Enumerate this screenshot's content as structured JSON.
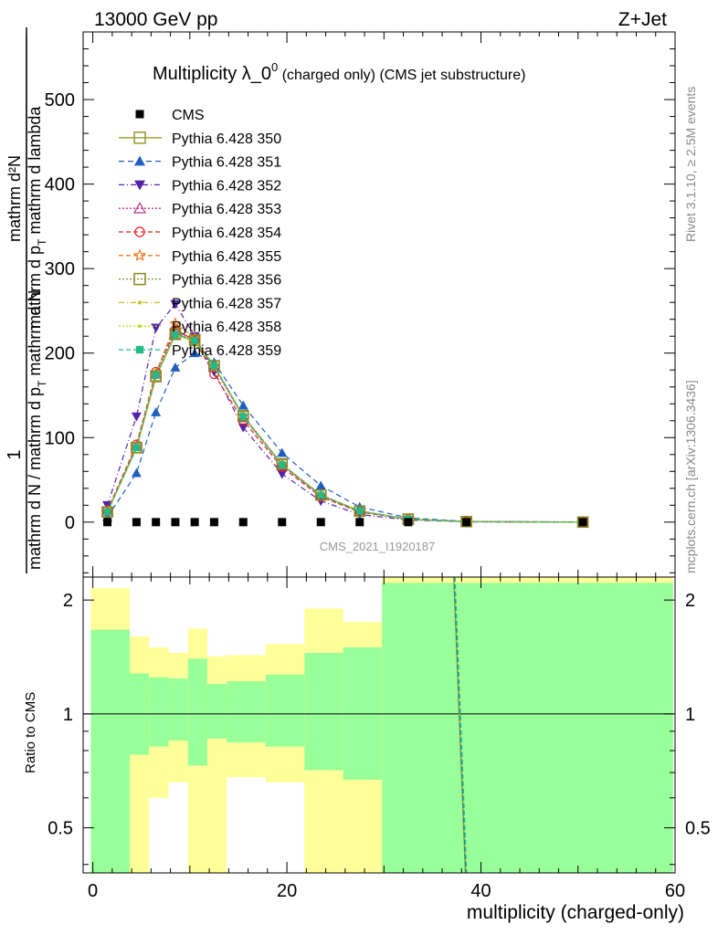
{
  "header": {
    "energy": "13000 GeV pp",
    "process": "Z+Jet"
  },
  "title": {
    "main": "Multiplicity λ_0",
    "sup": "0",
    "tail": " (charged only) (CMS jet substructure)"
  },
  "side": {
    "rivet": "Rivet 3.1.10, ≥ 2.5M events",
    "site": "mcplots.cern.ch [arXiv:1306.3436]"
  },
  "watermark": "CMS_2021_I1920187",
  "ylabel_top": {
    "numerator": "1",
    "denominator_text": "mathrm d N / mathrm d p",
    "denominator_sub": "T",
    "denominator_tail": " mathrm d N",
    "right_numerator": "mathrm d²N",
    "right_den_a": "mathrm d p",
    "right_den_sub": "T",
    "right_den_b": " mathrm d lambda"
  },
  "ylabel_ratio": "Ratio to CMS",
  "xlabel": "multiplicity (charged-only)",
  "colors": {
    "green_band": "#99ff99",
    "yellow_band": "#ffff99",
    "cms": "#000000"
  },
  "chart_data": {
    "type": "scatter",
    "x_ticks": [
      "0",
      "20",
      "40",
      "60"
    ],
    "y_ticks_main": [
      "0",
      "100",
      "200",
      "300",
      "400",
      "500"
    ],
    "y_ticks_ratio": [
      "0.5",
      "1",
      "2"
    ],
    "xlim": [
      -1,
      60
    ],
    "ylim_main": [
      -65,
      580
    ],
    "ylim_ratio": [
      0.38,
      2.3
    ],
    "cms": {
      "name": "CMS",
      "x": [
        1.5,
        4.5,
        6.5,
        8.5,
        10.5,
        12.5,
        15.5,
        19.5,
        23.5,
        27.5,
        32.5,
        38.5,
        50.5
      ],
      "y": [
        0,
        0,
        0,
        0,
        0,
        0,
        0,
        0,
        0,
        0,
        0,
        0,
        0
      ]
    },
    "series": [
      {
        "name": "Pythia 6.428 350",
        "color": "#999933",
        "dash": "",
        "marker": "square-open",
        "x": [
          1.5,
          4.5,
          6.5,
          8.5,
          10.5,
          12.5,
          15.5,
          19.5,
          23.5,
          27.5,
          32.5,
          38.5,
          50.5
        ],
        "y": [
          12,
          88,
          172,
          222,
          215,
          185,
          125,
          68,
          32,
          13,
          3.5,
          0.6,
          0.05
        ]
      },
      {
        "name": "Pythia 6.428 351",
        "color": "#1f5fbf",
        "dash": "6,4",
        "marker": "triangle-up",
        "x": [
          1.5,
          4.5,
          6.5,
          8.5,
          10.5,
          12.5,
          15.5,
          19.5,
          23.5,
          27.5,
          32.5,
          38.5,
          50.5
        ],
        "y": [
          6,
          58,
          130,
          183,
          200,
          189,
          138,
          82,
          43,
          18,
          5,
          0.9,
          0.05
        ]
      },
      {
        "name": "Pythia 6.428 352",
        "color": "#5522aa",
        "dash": "6,3,1,3",
        "marker": "triangle-down",
        "x": [
          1.5,
          4.5,
          6.5,
          8.5,
          10.5,
          12.5,
          15.5,
          19.5,
          23.5,
          27.5,
          32.5,
          38.5,
          50.5
        ],
        "y": [
          20,
          125,
          230,
          258,
          220,
          178,
          112,
          57,
          25,
          9,
          2.5,
          0.4,
          0.03
        ]
      },
      {
        "name": "Pythia 6.428 353",
        "color": "#bb3388",
        "dash": "2,2",
        "marker": "triangle-open",
        "x": [
          1.5,
          4.5,
          6.5,
          8.5,
          10.5,
          12.5,
          15.5,
          19.5,
          23.5,
          27.5,
          32.5,
          38.5,
          50.5
        ],
        "y": [
          13,
          90,
          175,
          225,
          217,
          183,
          124,
          67,
          31,
          12,
          3.4,
          0.6,
          0.05
        ]
      },
      {
        "name": "Pythia 6.428 354",
        "color": "#dd2222",
        "dash": "5,3",
        "marker": "circle-open",
        "x": [
          1.5,
          4.5,
          6.5,
          8.5,
          10.5,
          12.5,
          15.5,
          19.5,
          23.5,
          27.5,
          32.5,
          38.5,
          50.5
        ],
        "y": [
          14,
          92,
          178,
          228,
          215,
          175,
          120,
          65,
          30,
          12,
          3.3,
          0.6,
          0.05
        ]
      },
      {
        "name": "Pythia 6.428 355",
        "color": "#ee7722",
        "dash": "5,3",
        "marker": "star-open",
        "x": [
          1.5,
          4.5,
          6.5,
          8.5,
          10.5,
          12.5,
          15.5,
          19.5,
          23.5,
          27.5,
          32.5,
          38.5,
          50.5
        ],
        "y": [
          13,
          89,
          176,
          235,
          218,
          184,
          125,
          68,
          32,
          13,
          3.5,
          0.6,
          0.05
        ]
      },
      {
        "name": "Pythia 6.428 356",
        "color": "#888822",
        "dash": "2,2",
        "marker": "square-open",
        "x": [
          1.5,
          4.5,
          6.5,
          8.5,
          10.5,
          12.5,
          15.5,
          19.5,
          23.5,
          27.5,
          32.5,
          38.5,
          50.5
        ],
        "y": [
          12,
          88,
          173,
          223,
          216,
          185,
          126,
          69,
          32,
          13,
          3.5,
          0.6,
          0.05
        ]
      },
      {
        "name": "Pythia 6.428 357",
        "color": "#ccbb22",
        "dash": "6,3,1,3",
        "marker": "dot",
        "x": [
          1.5,
          4.5,
          6.5,
          8.5,
          10.5,
          12.5,
          15.5,
          19.5,
          23.5,
          27.5,
          32.5,
          38.5,
          50.5
        ],
        "y": [
          12,
          87,
          172,
          221,
          214,
          184,
          126,
          68,
          32,
          13,
          3.5,
          0.6,
          0.05
        ]
      },
      {
        "name": "Pythia 6.428 358",
        "color": "#bbdd22",
        "dash": "2,2",
        "marker": "dot",
        "x": [
          1.5,
          4.5,
          6.5,
          8.5,
          10.5,
          12.5,
          15.5,
          19.5,
          23.5,
          27.5,
          32.5,
          38.5,
          50.5
        ],
        "y": [
          12,
          88,
          173,
          222,
          215,
          185,
          125,
          68,
          32,
          13,
          3.5,
          0.6,
          0.05
        ]
      },
      {
        "name": "Pythia 6.428 359",
        "color": "#22bb88",
        "dash": "5,3",
        "marker": "square-filled",
        "x": [
          1.5,
          4.5,
          6.5,
          8.5,
          10.5,
          12.5,
          15.5,
          19.5,
          23.5,
          27.5,
          32.5,
          38.5,
          50.5
        ],
        "y": [
          12,
          88,
          174,
          222,
          215,
          185,
          125,
          68,
          32,
          13,
          3.5,
          0.6,
          0.05
        ]
      }
    ],
    "ratio_bands": [
      {
        "x0": -0.2,
        "x1": 3.8,
        "g_lo": 0.38,
        "g_hi": 1.67,
        "y_lo": 0.38,
        "y_hi": 2.15
      },
      {
        "x0": 3.8,
        "x1": 5.8,
        "g_lo": 0.78,
        "g_hi": 1.28,
        "y_lo": 0.38,
        "y_hi": 1.6
      },
      {
        "x0": 5.8,
        "x1": 7.8,
        "g_lo": 0.82,
        "g_hi": 1.25,
        "y_lo": 0.6,
        "y_hi": 1.5
      },
      {
        "x0": 7.8,
        "x1": 9.8,
        "g_lo": 0.85,
        "g_hi": 1.24,
        "y_lo": 0.66,
        "y_hi": 1.45
      },
      {
        "x0": 9.8,
        "x1": 11.8,
        "g_lo": 0.73,
        "g_hi": 1.4,
        "y_lo": 0.38,
        "y_hi": 1.68
      },
      {
        "x0": 11.8,
        "x1": 13.8,
        "g_lo": 0.86,
        "g_hi": 1.2,
        "y_lo": 0.38,
        "y_hi": 1.42
      },
      {
        "x0": 13.8,
        "x1": 17.8,
        "g_lo": 0.84,
        "g_hi": 1.22,
        "y_lo": 0.68,
        "y_hi": 1.43
      },
      {
        "x0": 17.8,
        "x1": 21.8,
        "g_lo": 0.82,
        "g_hi": 1.27,
        "y_lo": 0.66,
        "y_hi": 1.53
      },
      {
        "x0": 21.8,
        "x1": 25.8,
        "g_lo": 0.71,
        "g_hi": 1.45,
        "y_lo": 0.38,
        "y_hi": 1.9
      },
      {
        "x0": 25.8,
        "x1": 29.8,
        "g_lo": 0.67,
        "g_hi": 1.5,
        "y_lo": 0.38,
        "y_hi": 1.75
      },
      {
        "x0": 29.8,
        "x1": 59.8,
        "g_lo": 0.38,
        "g_hi": 2.22,
        "y_lo": 0.38,
        "y_hi": 2.3
      }
    ],
    "ratio_line": {
      "x": [
        37.2,
        38.4
      ],
      "y": [
        2.3,
        0.38
      ]
    }
  }
}
